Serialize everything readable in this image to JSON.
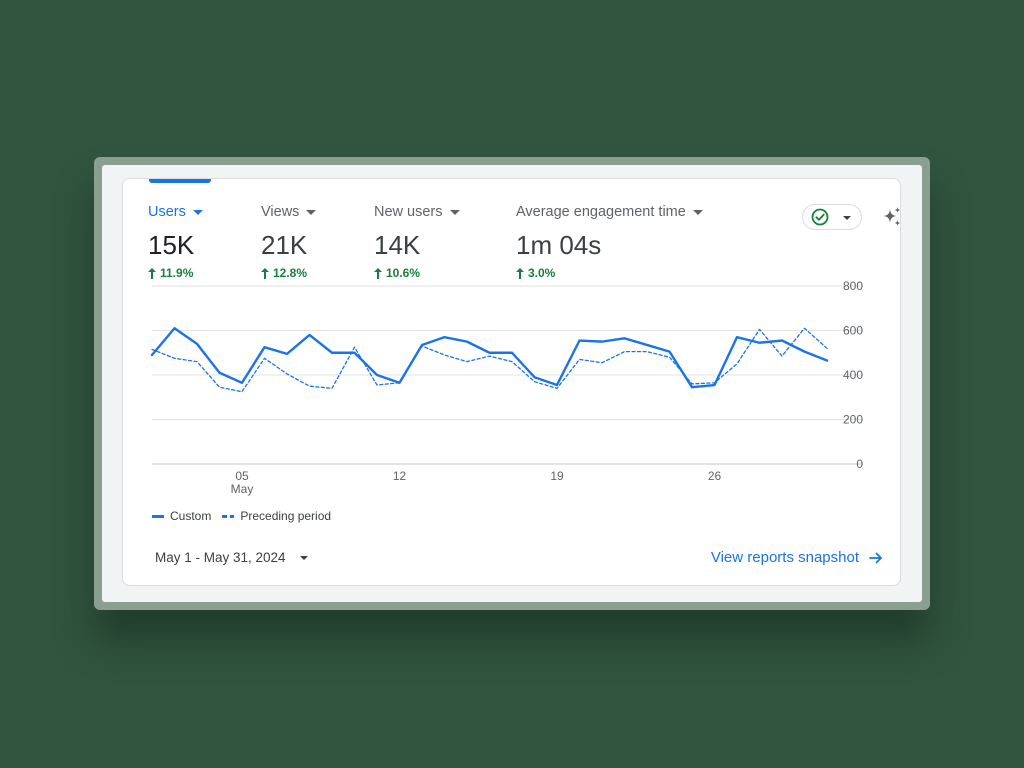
{
  "metrics": [
    {
      "label": "Users",
      "value": "15K",
      "change": "11.9%",
      "active": true
    },
    {
      "label": "Views",
      "value": "21K",
      "change": "12.8%",
      "active": false
    },
    {
      "label": "New users",
      "value": "14K",
      "change": "10.6%",
      "active": false
    },
    {
      "label": "Average engagement time",
      "value": "1m 04s",
      "change": "3.0%",
      "active": false
    }
  ],
  "header_actions": {
    "status_icon": "check-circle-icon",
    "insights_icon": "sparkle-icon"
  },
  "chart_data": {
    "type": "line",
    "x": [
      1,
      2,
      3,
      4,
      5,
      6,
      7,
      8,
      9,
      10,
      11,
      12,
      13,
      14,
      15,
      16,
      17,
      18,
      19,
      20,
      21,
      22,
      23,
      24,
      25,
      26,
      27,
      28,
      29,
      30,
      31
    ],
    "x_ticks": [
      {
        "day": 5,
        "label": "05",
        "sublabel": "May"
      },
      {
        "day": 12,
        "label": "12",
        "sublabel": ""
      },
      {
        "day": 19,
        "label": "19",
        "sublabel": ""
      },
      {
        "day": 26,
        "label": "26",
        "sublabel": ""
      }
    ],
    "y_ticks": [
      0,
      200,
      400,
      600,
      800
    ],
    "ylim": [
      0,
      800
    ],
    "grid": true,
    "legend": "bottom-left",
    "series": [
      {
        "name": "Custom",
        "style": "solid",
        "color": "#1a73e8",
        "values": [
          490,
          610,
          540,
          410,
          365,
          525,
          495,
          580,
          500,
          500,
          400,
          365,
          535,
          570,
          550,
          500,
          500,
          390,
          355,
          555,
          550,
          565,
          535,
          505,
          345,
          355,
          570,
          545,
          555,
          505,
          465
        ]
      },
      {
        "name": "Preceding period",
        "style": "dashed",
        "color": "#1a73e8",
        "values": [
          515,
          475,
          460,
          345,
          325,
          475,
          405,
          350,
          340,
          525,
          355,
          365,
          530,
          490,
          460,
          485,
          460,
          370,
          340,
          470,
          455,
          505,
          505,
          480,
          360,
          365,
          450,
          605,
          485,
          610,
          520
        ]
      }
    ]
  },
  "legend": {
    "custom_label": "Custom",
    "preceding_label": "Preceding period"
  },
  "footer": {
    "date_range": "May 1 - May 31, 2024",
    "view_link": "View reports snapshot"
  }
}
